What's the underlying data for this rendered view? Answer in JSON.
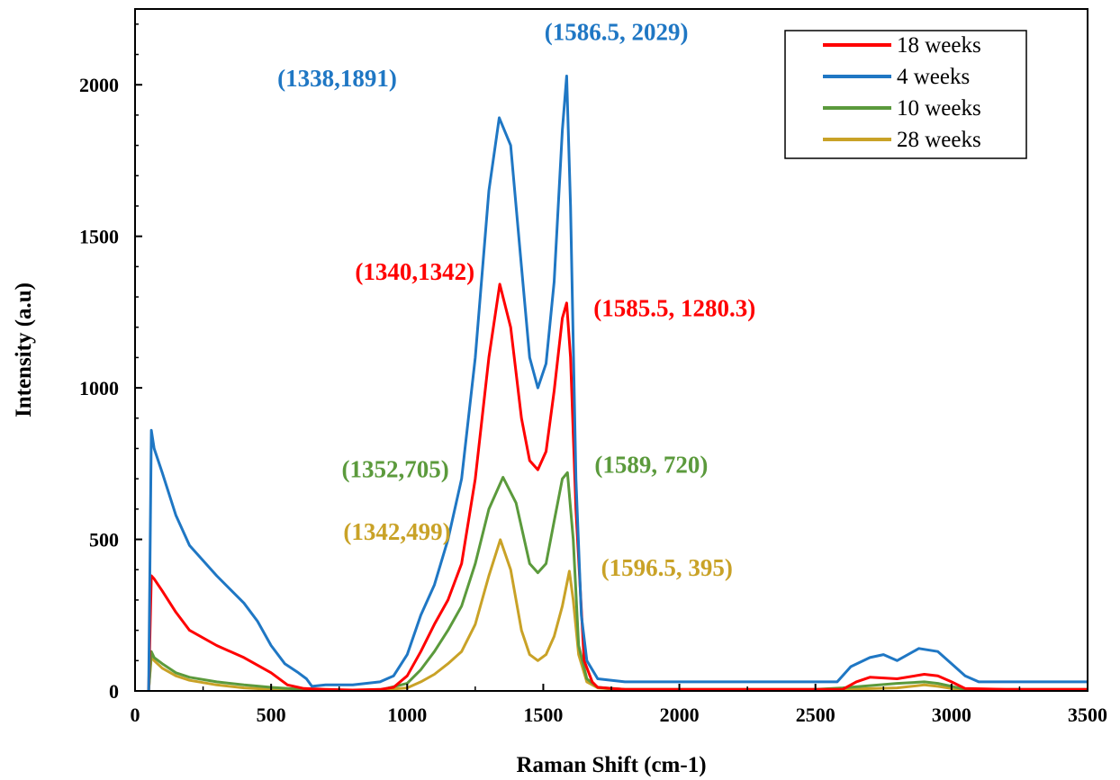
{
  "chart_data": {
    "type": "line",
    "xlabel": "Raman Shift (cm-1)",
    "ylabel": "Intensity (a.u)",
    "xlim": [
      0,
      3500
    ],
    "ylim": [
      0,
      2250
    ],
    "xticks": [
      "0",
      "500",
      "1000",
      "1500",
      "2000",
      "2500",
      "3000",
      "3500"
    ],
    "yticks": [
      "0",
      "500",
      "1000",
      "1500",
      "2000"
    ],
    "legend_position": "top-right",
    "series": [
      {
        "name": "18 weeks",
        "color": "#ff0000",
        "x": [
          50,
          60,
          70,
          100,
          150,
          200,
          300,
          400,
          500,
          560,
          620,
          700,
          800,
          900,
          950,
          1000,
          1050,
          1100,
          1150,
          1200,
          1250,
          1300,
          1340,
          1380,
          1420,
          1450,
          1480,
          1510,
          1540,
          1570,
          1586,
          1600,
          1620,
          1650,
          1680,
          1700,
          1750,
          1800,
          2000,
          2200,
          2400,
          2600,
          2650,
          2700,
          2800,
          2900,
          2950,
          3000,
          3050,
          3200,
          3500
        ],
        "y": [
          0,
          380,
          370,
          330,
          260,
          200,
          150,
          110,
          60,
          20,
          8,
          5,
          3,
          5,
          12,
          50,
          130,
          220,
          300,
          420,
          700,
          1100,
          1342,
          1200,
          900,
          760,
          730,
          790,
          990,
          1230,
          1280,
          1100,
          600,
          100,
          30,
          12,
          8,
          5,
          5,
          5,
          5,
          5,
          30,
          45,
          40,
          55,
          50,
          30,
          8,
          5,
          5
        ]
      },
      {
        "name": "4 weeks",
        "color": "#1f77c4",
        "x": [
          50,
          60,
          70,
          100,
          150,
          200,
          300,
          400,
          450,
          500,
          550,
          600,
          630,
          650,
          700,
          800,
          900,
          950,
          1000,
          1050,
          1100,
          1150,
          1200,
          1250,
          1300,
          1338,
          1380,
          1420,
          1450,
          1480,
          1510,
          1540,
          1570,
          1586,
          1600,
          1620,
          1640,
          1660,
          1700,
          1800,
          2000,
          2200,
          2400,
          2580,
          2630,
          2700,
          2750,
          2800,
          2880,
          2950,
          3000,
          3050,
          3100,
          3500
        ],
        "y": [
          0,
          860,
          800,
          720,
          580,
          480,
          380,
          290,
          230,
          150,
          90,
          60,
          40,
          15,
          20,
          20,
          30,
          50,
          120,
          250,
          350,
          500,
          700,
          1100,
          1650,
          1891,
          1800,
          1400,
          1100,
          1000,
          1080,
          1350,
          1850,
          2029,
          1600,
          700,
          250,
          100,
          40,
          30,
          30,
          30,
          30,
          30,
          80,
          110,
          120,
          100,
          140,
          130,
          90,
          50,
          30,
          30
        ]
      },
      {
        "name": "10 weeks",
        "color": "#5b9a3c",
        "x": [
          50,
          60,
          70,
          100,
          150,
          200,
          300,
          400,
          500,
          600,
          700,
          900,
          1000,
          1050,
          1100,
          1150,
          1200,
          1250,
          1300,
          1352,
          1400,
          1450,
          1480,
          1510,
          1540,
          1570,
          1589,
          1610,
          1630,
          1660,
          1700,
          1800,
          2500,
          2600,
          2800,
          2900,
          2950,
          3000,
          3050,
          3500
        ],
        "y": [
          0,
          130,
          110,
          90,
          60,
          45,
          30,
          20,
          12,
          6,
          3,
          3,
          25,
          70,
          130,
          200,
          280,
          420,
          600,
          705,
          620,
          420,
          390,
          420,
          560,
          700,
          720,
          500,
          150,
          40,
          12,
          5,
          5,
          10,
          25,
          30,
          25,
          15,
          5,
          5
        ]
      },
      {
        "name": "28 weeks",
        "color": "#c9a227",
        "x": [
          50,
          60,
          70,
          100,
          150,
          200,
          300,
          400,
          500,
          600,
          900,
          1000,
          1050,
          1100,
          1150,
          1200,
          1250,
          1300,
          1342,
          1380,
          1420,
          1450,
          1480,
          1510,
          1540,
          1570,
          1596,
          1610,
          1630,
          1660,
          1700,
          1800,
          2500,
          2800,
          2900,
          2950,
          3000,
          3050,
          3500
        ],
        "y": [
          0,
          115,
          100,
          75,
          50,
          35,
          20,
          10,
          5,
          3,
          3,
          10,
          30,
          55,
          90,
          130,
          220,
          380,
          499,
          400,
          200,
          120,
          100,
          120,
          180,
          280,
          395,
          300,
          120,
          30,
          10,
          3,
          3,
          10,
          20,
          15,
          8,
          3,
          3
        ]
      }
    ],
    "annotations": [
      {
        "text": "(1586.5, 2029)",
        "x": 1586.5,
        "y": 2029,
        "color": "#1f77c4"
      },
      {
        "text": "(1338,1891)",
        "x": 1338,
        "y": 1891,
        "color": "#1f77c4"
      },
      {
        "text": "(1340,1342)",
        "x": 1340,
        "y": 1342,
        "color": "#ff0000"
      },
      {
        "text": "(1585.5, 1280.3)",
        "x": 1585.5,
        "y": 1280.3,
        "color": "#ff0000"
      },
      {
        "text": "(1352,705)",
        "x": 1352,
        "y": 705,
        "color": "#5b9a3c"
      },
      {
        "text": "(1589, 720)",
        "x": 1589,
        "y": 720,
        "color": "#5b9a3c"
      },
      {
        "text": "(1342,499)",
        "x": 1342,
        "y": 499,
        "color": "#c9a227"
      },
      {
        "text": "(1596.5, 395)",
        "x": 1596.5,
        "y": 395,
        "color": "#c9a227"
      }
    ]
  }
}
